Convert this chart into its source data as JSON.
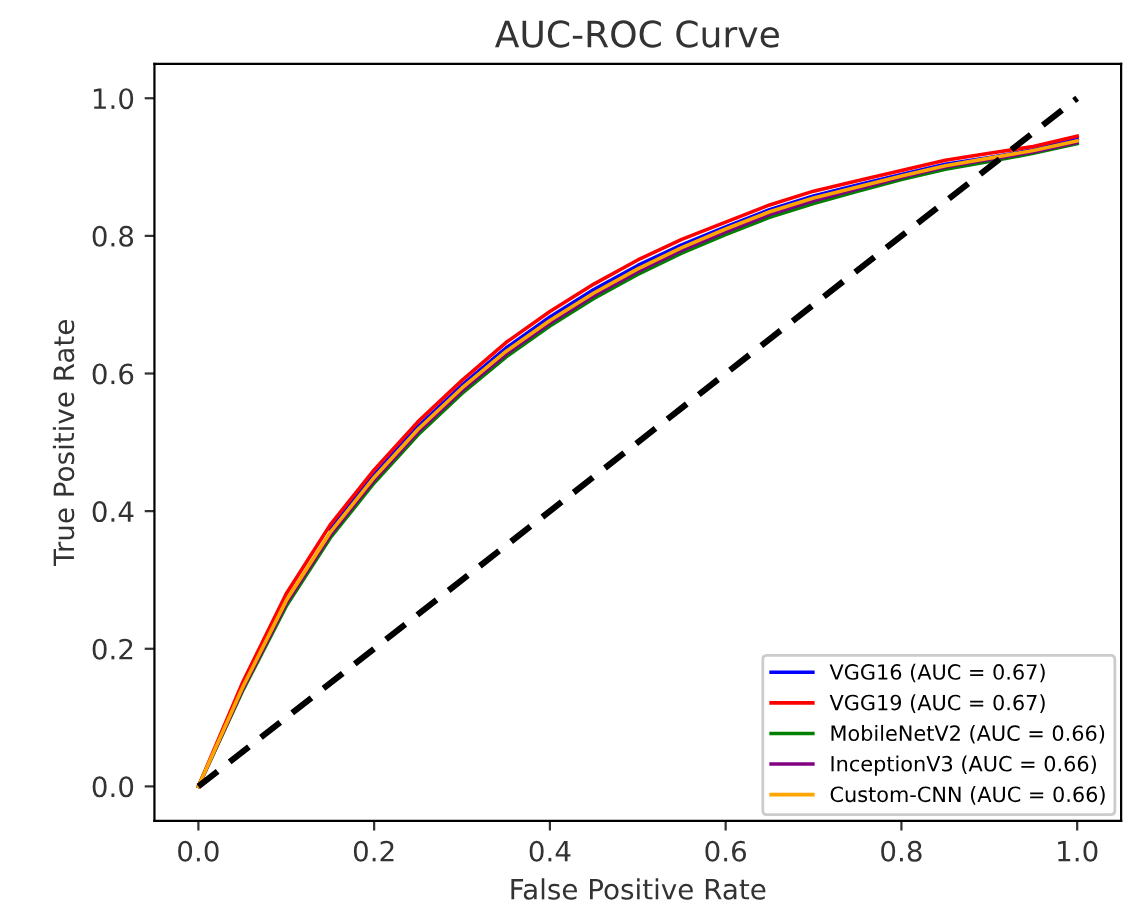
{
  "chart_data": {
    "type": "line",
    "title": "AUC-ROC Curve",
    "xlabel": "False Positive Rate",
    "ylabel": "True Positive Rate",
    "x": [
      0,
      0.05,
      0.1,
      0.15,
      0.2,
      0.25,
      0.3,
      0.35,
      0.4,
      0.45,
      0.5,
      0.55,
      0.6,
      0.65,
      0.7,
      0.75,
      0.8,
      0.85,
      0.9,
      0.95,
      1.0
    ],
    "series": [
      {
        "name": "VGG16 (AUC = 0.67)",
        "color": "#0000ff",
        "values": [
          null,
          null,
          null,
          0.373,
          0.453,
          0.523,
          0.583,
          0.637,
          0.682,
          0.722,
          0.757,
          0.787,
          0.813,
          0.838,
          0.858,
          0.874,
          0.889,
          0.904,
          0.914,
          0.925,
          0.941
        ]
      },
      {
        "name": "VGG19 (AUC = 0.67)",
        "color": "#ff0000",
        "values": [
          0,
          0.15,
          0.28,
          0.38,
          0.46,
          0.53,
          0.59,
          0.645,
          0.69,
          0.73,
          0.765,
          0.795,
          0.82,
          0.845,
          0.865,
          0.88,
          0.895,
          0.91,
          0.92,
          0.93,
          0.945
        ]
      },
      {
        "name": "MobileNetV2 (AUC = 0.66)",
        "color": "#008000",
        "values": [
          0,
          0.138,
          0.262,
          0.361,
          0.441,
          0.511,
          0.571,
          0.624,
          0.669,
          0.709,
          0.744,
          0.775,
          0.802,
          0.827,
          0.847,
          0.865,
          0.882,
          0.897,
          0.908,
          0.92,
          0.934
        ]
      },
      {
        "name": "InceptionV3 (AUC = 0.66)",
        "color": "#800080",
        "values": [
          0,
          0.14,
          0.266,
          0.365,
          0.445,
          0.515,
          0.575,
          0.628,
          0.673,
          0.713,
          0.748,
          0.779,
          0.806,
          0.831,
          0.851,
          0.868,
          0.885,
          0.9,
          0.911,
          0.922,
          0.936
        ]
      },
      {
        "name": "Custom-CNN (AUC = 0.66)",
        "color": "#ffa500",
        "values": [
          0,
          0.143,
          0.27,
          0.369,
          0.449,
          0.519,
          0.579,
          0.632,
          0.677,
          0.717,
          0.752,
          0.783,
          0.81,
          0.835,
          0.855,
          0.871,
          0.887,
          0.902,
          0.913,
          0.924,
          0.938
        ]
      },
      {
        "color": "#000000",
        "line_style": "dashed",
        "x": [
          0,
          1
        ],
        "values": [
          0,
          1
        ]
      }
    ],
    "xlim": [
      -0.05,
      1.05
    ],
    "ylim": [
      -0.05,
      1.05
    ],
    "xticks": [
      {
        "value": 0,
        "label": "0.0"
      },
      0.2,
      0.4,
      0.6,
      0.8,
      {
        "value": 1,
        "label": "1.0"
      }
    ],
    "yticks": [
      {
        "value": 0,
        "label": "0.0"
      },
      0.2,
      0.4,
      0.6,
      0.8,
      {
        "value": 1,
        "label": "1.0"
      }
    ],
    "grid": false,
    "legend": "bottom right",
    "line_style": "solid"
  }
}
